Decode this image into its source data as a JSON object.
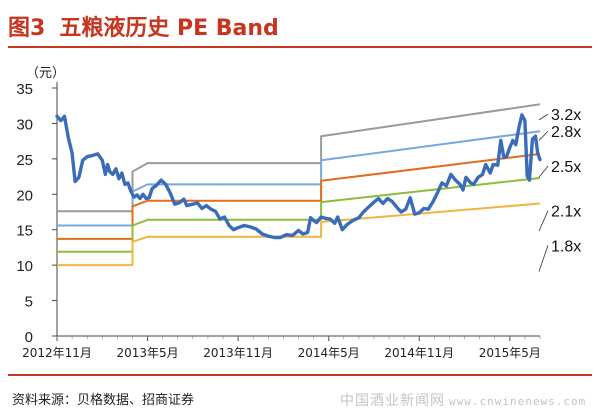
{
  "header": {
    "figure_no": "图3",
    "title": "五粮液历史 PE Band"
  },
  "unit_label": "（元）",
  "source": "资料来源：贝格数据、招商证券",
  "watermark": {
    "site": "中国酒业新闻网",
    "url": "www.cnwinenews.com"
  },
  "chart_data": {
    "type": "line",
    "ylim": [
      0,
      35
    ],
    "yticks": [
      0,
      5,
      10,
      15,
      20,
      25,
      30,
      35
    ],
    "xlim": [
      0,
      32
    ],
    "xticks": [
      {
        "pos": 0,
        "label": "2012年11月"
      },
      {
        "pos": 6,
        "label": "2013年5月"
      },
      {
        "pos": 12,
        "label": "2013年11月"
      },
      {
        "pos": 18,
        "label": "2014年5月"
      },
      {
        "pos": 24,
        "label": "2014年11月"
      },
      {
        "pos": 30,
        "label": "2015年5月"
      }
    ],
    "band_colors": [
      "#9a9a9a",
      "#76a9e0",
      "#e46c1f",
      "#8cbd39",
      "#f2b441"
    ],
    "price_color": "#3a6cb9",
    "bands": [
      {
        "name": "3.2x",
        "points": [
          [
            0,
            17.6
          ],
          [
            5,
            17.6
          ],
          [
            5,
            23.2
          ],
          [
            6,
            24.4
          ],
          [
            17.5,
            24.4
          ],
          [
            17.5,
            28.2
          ],
          [
            32,
            32.7
          ]
        ]
      },
      {
        "name": "2.8x",
        "points": [
          [
            0,
            15.6
          ],
          [
            5,
            15.6
          ],
          [
            5,
            20.4
          ],
          [
            6,
            21.4
          ],
          [
            17.5,
            21.4
          ],
          [
            17.5,
            24.8
          ],
          [
            32,
            28.9
          ]
        ]
      },
      {
        "name": "2.5x",
        "points": [
          [
            0,
            13.7
          ],
          [
            5,
            13.7
          ],
          [
            5,
            18.3
          ],
          [
            6,
            19.1
          ],
          [
            17.5,
            19.1
          ],
          [
            17.5,
            21.9
          ],
          [
            32,
            25.7
          ]
        ]
      },
      {
        "name": "2.1x",
        "points": [
          [
            0,
            11.9
          ],
          [
            5,
            11.9
          ],
          [
            5,
            15.6
          ],
          [
            6,
            16.4
          ],
          [
            17.5,
            16.4
          ],
          [
            17.5,
            18.9
          ],
          [
            32,
            22.3
          ]
        ]
      },
      {
        "name": "1.8x",
        "points": [
          [
            0,
            10.0
          ],
          [
            5,
            10.0
          ],
          [
            5,
            13.3
          ],
          [
            6,
            14.0
          ],
          [
            17.5,
            14.0
          ],
          [
            17.5,
            16.1
          ],
          [
            32,
            18.7
          ]
        ]
      }
    ],
    "price": [
      [
        0,
        31.0
      ],
      [
        0.25,
        30.4
      ],
      [
        0.5,
        31.0
      ],
      [
        0.75,
        28.0
      ],
      [
        1.0,
        25.8
      ],
      [
        1.2,
        21.8
      ],
      [
        1.45,
        22.4
      ],
      [
        1.7,
        24.8
      ],
      [
        2.0,
        25.3
      ],
      [
        2.4,
        25.5
      ],
      [
        2.7,
        25.7
      ],
      [
        3.0,
        24.8
      ],
      [
        3.2,
        22.8
      ],
      [
        3.35,
        24.2
      ],
      [
        3.5,
        23.2
      ],
      [
        3.7,
        22.8
      ],
      [
        3.9,
        23.6
      ],
      [
        4.1,
        22.2
      ],
      [
        4.3,
        23.0
      ],
      [
        4.5,
        21.4
      ],
      [
        4.7,
        21.6
      ],
      [
        4.9,
        20.4
      ],
      [
        5.1,
        19.6
      ],
      [
        5.3,
        19.9
      ],
      [
        5.5,
        19.4
      ],
      [
        5.7,
        20.0
      ],
      [
        5.9,
        19.4
      ],
      [
        6.1,
        19.5
      ],
      [
        6.3,
        20.8
      ],
      [
        6.6,
        21.3
      ],
      [
        6.9,
        22.0
      ],
      [
        7.2,
        21.4
      ],
      [
        7.5,
        20.2
      ],
      [
        7.8,
        18.6
      ],
      [
        8.1,
        18.8
      ],
      [
        8.4,
        19.3
      ],
      [
        8.6,
        18.4
      ],
      [
        8.8,
        18.5
      ],
      [
        9.0,
        18.6
      ],
      [
        9.3,
        18.8
      ],
      [
        9.6,
        18.0
      ],
      [
        9.9,
        18.4
      ],
      [
        10.2,
        17.9
      ],
      [
        10.5,
        17.6
      ],
      [
        10.8,
        16.5
      ],
      [
        11.1,
        16.8
      ],
      [
        11.4,
        15.6
      ],
      [
        11.7,
        15.0
      ],
      [
        12.0,
        15.3
      ],
      [
        12.4,
        15.6
      ],
      [
        12.8,
        15.4
      ],
      [
        13.2,
        15.1
      ],
      [
        13.6,
        14.4
      ],
      [
        14.0,
        14.1
      ],
      [
        14.4,
        13.9
      ],
      [
        14.8,
        13.9
      ],
      [
        15.2,
        14.3
      ],
      [
        15.6,
        14.2
      ],
      [
        16.0,
        14.9
      ],
      [
        16.3,
        14.4
      ],
      [
        16.6,
        14.6
      ],
      [
        16.8,
        16.7
      ],
      [
        17.0,
        16.3
      ],
      [
        17.2,
        16.0
      ],
      [
        17.5,
        16.8
      ],
      [
        17.8,
        16.6
      ],
      [
        18.1,
        16.5
      ],
      [
        18.4,
        15.9
      ],
      [
        18.6,
        16.8
      ],
      [
        18.9,
        15.0
      ],
      [
        19.2,
        15.7
      ],
      [
        19.6,
        16.3
      ],
      [
        20.0,
        16.7
      ],
      [
        20.3,
        17.5
      ],
      [
        20.6,
        18.1
      ],
      [
        21.0,
        18.9
      ],
      [
        21.3,
        19.4
      ],
      [
        21.6,
        18.7
      ],
      [
        21.9,
        19.4
      ],
      [
        22.2,
        19.0
      ],
      [
        22.5,
        18.2
      ],
      [
        22.8,
        17.5
      ],
      [
        23.1,
        17.9
      ],
      [
        23.4,
        19.5
      ],
      [
        23.7,
        17.2
      ],
      [
        24.0,
        17.4
      ],
      [
        24.3,
        18.0
      ],
      [
        24.6,
        17.9
      ],
      [
        24.9,
        18.9
      ],
      [
        25.2,
        20.2
      ],
      [
        25.5,
        21.6
      ],
      [
        25.8,
        21.2
      ],
      [
        26.1,
        22.8
      ],
      [
        26.4,
        22.0
      ],
      [
        26.7,
        21.4
      ],
      [
        26.9,
        20.6
      ],
      [
        27.1,
        22.4
      ],
      [
        27.4,
        21.6
      ],
      [
        27.6,
        21.4
      ],
      [
        27.9,
        22.4
      ],
      [
        28.2,
        22.8
      ],
      [
        28.4,
        24.2
      ],
      [
        28.7,
        23.0
      ],
      [
        28.9,
        24.2
      ],
      [
        29.2,
        24.1
      ],
      [
        29.4,
        27.6
      ],
      [
        29.6,
        25.2
      ],
      [
        29.8,
        25.4
      ],
      [
        30.0,
        26.6
      ],
      [
        30.2,
        27.6
      ],
      [
        30.4,
        27.0
      ],
      [
        30.6,
        29.4
      ],
      [
        30.8,
        31.2
      ],
      [
        31.0,
        30.4
      ],
      [
        31.15,
        22.6
      ],
      [
        31.3,
        22.0
      ],
      [
        31.5,
        27.8
      ],
      [
        31.7,
        28.2
      ],
      [
        31.85,
        25.8
      ],
      [
        32.0,
        24.9
      ]
    ],
    "band_label_y": [
      31.3,
      30.5,
      28.9,
      27.6,
      24.0,
      22.4,
      17.7,
      14.8,
      12.8,
      9.1
    ]
  }
}
